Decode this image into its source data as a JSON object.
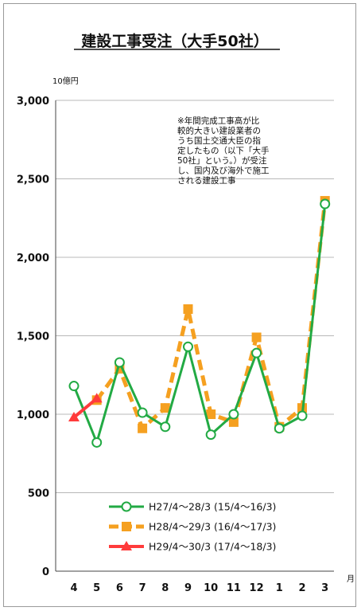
{
  "chart_data": {
    "type": "line",
    "title": "建設工事受注（大手50社）",
    "unit_label": "10億円",
    "x_unit": "月",
    "categories": [
      "4",
      "5",
      "6",
      "7",
      "8",
      "9",
      "10",
      "11",
      "12",
      "1",
      "2",
      "3"
    ],
    "ylim": [
      0,
      3000
    ],
    "yticks": [
      "0",
      "500",
      "1,000",
      "1,500",
      "2,000",
      "2,500",
      "3,000"
    ],
    "ytick_values": [
      0,
      500,
      1000,
      1500,
      2000,
      2500,
      3000
    ],
    "grid": true,
    "legend_position": "bottom-right",
    "note_lines": [
      "※年間完成工事高が比",
      "較的大きい建設業者の",
      "うち国土交通大臣の指",
      "定したもの（以下「大手",
      "50社」という。）が受注",
      "し、国内及び海外で施工",
      "される建設工事"
    ],
    "series": [
      {
        "name": "H27/4～28/3 (15/4～16/3)",
        "color": "#22aa44",
        "marker": "circle-open",
        "values": [
          1180,
          820,
          1330,
          1010,
          920,
          1430,
          870,
          1000,
          1390,
          910,
          990,
          2340
        ]
      },
      {
        "name": "H28/4～29/3 (16/4～17/3)",
        "color": "#f5a020",
        "marker": "square",
        "values": [
          null,
          1090,
          1290,
          910,
          1040,
          1670,
          1000,
          950,
          1490,
          920,
          1040,
          2360
        ]
      },
      {
        "name": "H29/4～30/3 (17/4～18/3)",
        "color": "#ff3b3b",
        "marker": "triangle",
        "values": [
          980,
          1100,
          null,
          null,
          null,
          null,
          null,
          null,
          null,
          null,
          null,
          null
        ]
      }
    ]
  }
}
